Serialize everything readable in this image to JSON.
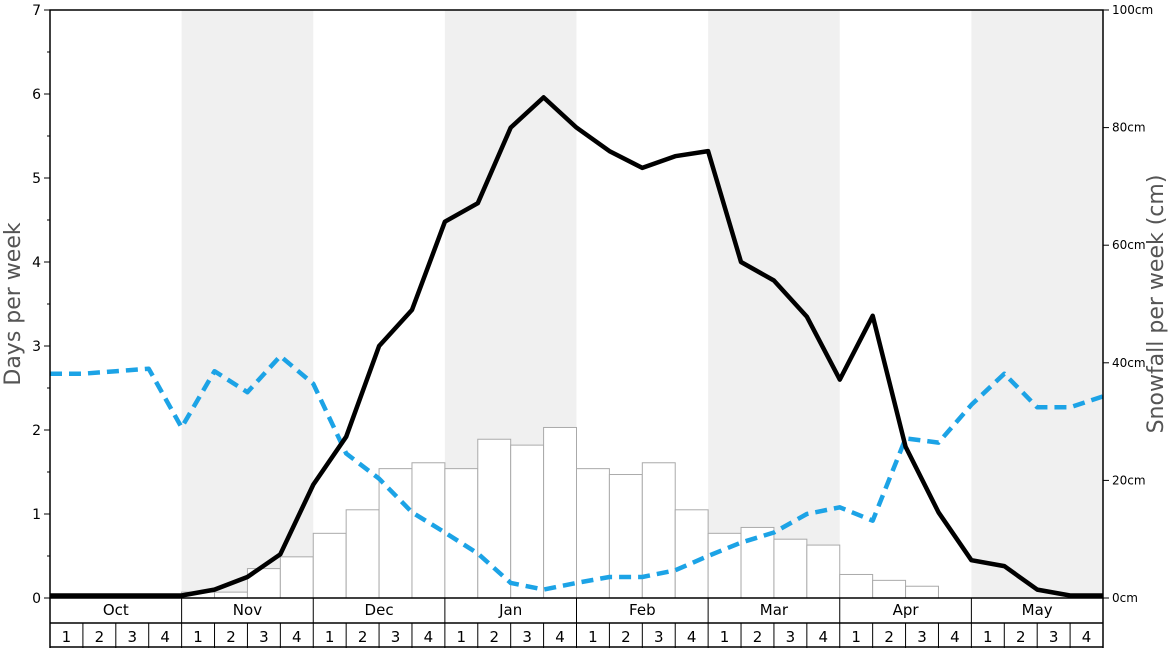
{
  "chart_data": {
    "type": "bar",
    "y_left_label": "Days per week",
    "y_right_label": "Snowfall per week (cm)",
    "y_left_range": [
      0,
      7
    ],
    "y_left_ticks": [
      "0",
      "1",
      "2",
      "3",
      "4",
      "5",
      "6",
      "7"
    ],
    "y_right_range": [
      0,
      100
    ],
    "y_right_ticks": [
      "0cm",
      "20cm",
      "40cm",
      "60cm",
      "80cm",
      "100cm"
    ],
    "months": [
      "Oct",
      "Nov",
      "Dec",
      "Jan",
      "Feb",
      "Mar",
      "Apr",
      "May"
    ],
    "week_labels": [
      "1",
      "2",
      "3",
      "4"
    ],
    "shaded_months": [
      "Nov",
      "Jan",
      "Mar",
      "May"
    ],
    "colors": {
      "snowfall_bar_fill": "#ffffff",
      "snowfall_bar_stroke": "#aaaaaa",
      "solid_line": "#000000",
      "dashed_line": "#1ca3e6",
      "shade": "#f0f0f0",
      "axis_text": "#555555"
    },
    "series": [
      {
        "type": "bar",
        "axis": "right",
        "unit": "cm",
        "values": [
          0,
          0,
          0,
          0,
          1,
          1,
          5,
          7,
          11,
          15,
          22,
          23,
          22,
          27,
          26,
          29,
          22,
          21,
          23,
          15,
          11,
          12,
          10,
          9,
          4,
          3,
          2,
          0,
          0,
          0,
          0,
          0
        ]
      },
      {
        "type": "line",
        "style": "solid",
        "axis": "left",
        "values": [
          0.03,
          0.03,
          0.03,
          0.03,
          0.1,
          0.25,
          0.52,
          1.35,
          1.92,
          3.0,
          3.43,
          4.48,
          4.7,
          5.6,
          5.96,
          5.6,
          5.32,
          5.12,
          5.26,
          5.32,
          4.0,
          3.78,
          3.35,
          2.6,
          3.36,
          1.8,
          1.02,
          0.45,
          0.38,
          0.1,
          0.03,
          0.03
        ]
      },
      {
        "type": "line",
        "style": "dashed",
        "axis": "left",
        "values": [
          2.67,
          2.7,
          2.73,
          2.03,
          2.7,
          2.45,
          2.88,
          2.55,
          1.72,
          1.42,
          1.02,
          0.78,
          0.53,
          0.18,
          0.1,
          0.18,
          0.25,
          0.25,
          0.33,
          0.5,
          0.66,
          0.78,
          1.0,
          1.08,
          0.92,
          1.9,
          1.85,
          2.3,
          2.67,
          2.27,
          2.27,
          2.4
        ]
      }
    ]
  }
}
